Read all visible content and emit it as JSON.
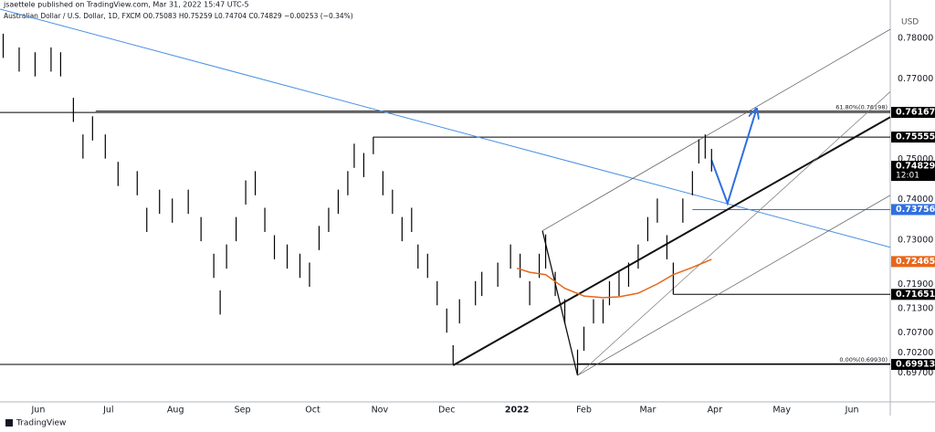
{
  "header": {
    "publisher": "jsaettele published on TradingView.com, Mar 31, 2022 15:47 UTC-5",
    "legend": "Australian Dollar / U.S. Dollar, 1D, FXCM  O0.75083 H0.75259 L0.74704 C0.74829 −0.00253 (−0.34%)"
  },
  "footer": "TradingView",
  "chart_data": {
    "type": "ohlc",
    "currency": "USD",
    "color": "#000000",
    "xlim": [
      0,
      279
    ],
    "ylim": [
      0.6887,
      0.7873
    ],
    "xticks": [
      {
        "value": 12,
        "label": "Jun"
      },
      {
        "value": 34,
        "label": "Jul"
      },
      {
        "value": 55,
        "label": "Aug"
      },
      {
        "value": 76,
        "label": "Sep"
      },
      {
        "value": 98,
        "label": "Oct"
      },
      {
        "value": 119,
        "label": "Nov"
      },
      {
        "value": 140,
        "label": "Dec"
      },
      {
        "value": 162,
        "label": "2022"
      },
      {
        "value": 183,
        "label": "Feb"
      },
      {
        "value": 203,
        "label": "Mar"
      },
      {
        "value": 224,
        "label": "Apr"
      },
      {
        "value": 245,
        "label": "May"
      },
      {
        "value": 267,
        "label": "Jun"
      }
    ],
    "yticks": [
      {
        "value": 0.78,
        "label": "0.78000"
      },
      {
        "value": 0.77,
        "label": "0.77000"
      },
      {
        "value": 0.75,
        "label": "0.75000"
      },
      {
        "value": 0.74,
        "label": "0.74000"
      },
      {
        "value": 0.73,
        "label": "0.73000"
      },
      {
        "value": 0.719,
        "label": "0.71900"
      },
      {
        "value": 0.713,
        "label": "0.71300"
      },
      {
        "value": 0.707,
        "label": "0.70700"
      },
      {
        "value": 0.702,
        "label": "0.70200"
      },
      {
        "value": 0.697,
        "label": "0.69700"
      }
    ],
    "bars": {
      "x": [
        1,
        6,
        11,
        16,
        19,
        23,
        26,
        29,
        33,
        37,
        43,
        46,
        50,
        54,
        59,
        63,
        67,
        69,
        71,
        74,
        77,
        80,
        83,
        86,
        90,
        94,
        97,
        100,
        103,
        106,
        109,
        111,
        114,
        117,
        120,
        123,
        126,
        129,
        131,
        134,
        137,
        140,
        142,
        144,
        149,
        151,
        156,
        160,
        163,
        166,
        169,
        171,
        174,
        177,
        181,
        183,
        186,
        189,
        191,
        194,
        197,
        200,
        203,
        206,
        209,
        211,
        214,
        217,
        219,
        221,
        223
      ],
      "high": [
        0.7812,
        0.7778,
        0.7766,
        0.7778,
        0.7766,
        0.7653,
        0.7562,
        0.7607,
        0.7562,
        0.7494,
        0.7471,
        0.738,
        0.7425,
        0.7403,
        0.7425,
        0.7357,
        0.7266,
        0.7175,
        0.7289,
        0.7357,
        0.7448,
        0.7471,
        0.738,
        0.7312,
        0.7289,
        0.7266,
        0.7244,
        0.7335,
        0.738,
        0.7425,
        0.7471,
        0.7539,
        0.7516,
        0.7556,
        0.7471,
        0.7425,
        0.7357,
        0.738,
        0.7289,
        0.7266,
        0.7198,
        0.713,
        0.7039,
        0.7153,
        0.7198,
        0.7221,
        0.7244,
        0.7289,
        0.7266,
        0.7198,
        0.7266,
        0.7314,
        0.7221,
        0.7153,
        0.7028,
        0.7085,
        0.7153,
        0.7153,
        0.7198,
        0.7221,
        0.7244,
        0.7289,
        0.7357,
        0.7403,
        0.7312,
        0.7244,
        0.7403,
        0.7471,
        0.755,
        0.7562,
        0.7526
      ],
      "low": [
        0.7752,
        0.7718,
        0.7706,
        0.7718,
        0.7706,
        0.7593,
        0.7502,
        0.7547,
        0.7502,
        0.7434,
        0.7411,
        0.732,
        0.7365,
        0.7343,
        0.7365,
        0.7297,
        0.7206,
        0.7115,
        0.7229,
        0.7297,
        0.7388,
        0.7411,
        0.732,
        0.7252,
        0.7229,
        0.7206,
        0.7184,
        0.7275,
        0.732,
        0.7365,
        0.7411,
        0.7479,
        0.7456,
        0.7513,
        0.7411,
        0.7365,
        0.7297,
        0.732,
        0.7229,
        0.7206,
        0.7138,
        0.707,
        0.6991,
        0.7093,
        0.7138,
        0.7161,
        0.7184,
        0.7229,
        0.7206,
        0.7138,
        0.7206,
        0.7229,
        0.7161,
        0.7093,
        0.6967,
        0.7025,
        0.7093,
        0.7093,
        0.7138,
        0.7161,
        0.7184,
        0.7229,
        0.7297,
        0.7343,
        0.7252,
        0.7165,
        0.7343,
        0.7411,
        0.749,
        0.7502,
        0.747
      ]
    },
    "series": [
      {
        "name": "MA",
        "color": "#e8661a",
        "x": [
          162,
          166,
          171,
          177,
          183,
          189,
          194,
          200,
          206,
          211,
          217,
          223
        ],
        "values": [
          0.723,
          0.722,
          0.7214,
          0.718,
          0.7161,
          0.7157,
          0.7159,
          0.7168,
          0.7191,
          0.7214,
          0.7232,
          0.7252
        ]
      }
    ],
    "trendlines": [
      {
        "color": "#4a90e2",
        "width": 1,
        "x": [
          0,
          279
        ],
        "values": [
          0.7873,
          0.7282
        ]
      },
      {
        "color": "#111111",
        "width": 2,
        "x": [
          142,
          279
        ],
        "values": [
          0.6989,
          0.7605
        ]
      },
      {
        "color": "#111111",
        "width": 1.3,
        "x": [
          170,
          181
        ],
        "values": [
          0.7323,
          0.6964
        ]
      },
      {
        "color": "#555555",
        "width": 0.7,
        "x": [
          170,
          279
        ],
        "values": [
          0.7323,
          0.7823
        ]
      },
      {
        "color": "#777777",
        "width": 0.7,
        "x": [
          181,
          279
        ],
        "values": [
          0.6964,
          0.7668
        ]
      },
      {
        "color": "#555555",
        "width": 0.7,
        "x": [
          181,
          279
        ],
        "values": [
          0.6964,
          0.7411
        ]
      },
      {
        "color": "#2f6fe0",
        "width": 2,
        "arrow": true,
        "x": [
          223,
          228,
          237
        ],
        "values": [
          0.7498,
          0.7391,
          0.7623
        ]
      }
    ],
    "levels": [
      {
        "value": 0.76167,
        "from": 0,
        "line": "#000000",
        "tag": "#000000"
      },
      {
        "value": 0.75555,
        "from": 117,
        "line": "#000000",
        "tag": "#000000"
      },
      {
        "value": 0.74829,
        "tag": "#000000",
        "time_label": "12:01"
      },
      {
        "value": 0.73756,
        "from": 217,
        "line": "#2f6fe0",
        "tag": "#2f6fe0"
      },
      {
        "value": 0.72465,
        "tag": "#e8661a"
      },
      {
        "value": 0.71651,
        "from": 211,
        "line": "#000000",
        "tag": "#000000"
      },
      {
        "value": 0.69913,
        "from": 0,
        "line": "#000000",
        "tag": "#000000"
      }
    ],
    "fib": [
      {
        "value": 0.76198,
        "from": 30,
        "label": "61.80%(0.76198)"
      },
      {
        "value": 0.6993,
        "from": 181,
        "label": "0.00%(0.69930)"
      }
    ]
  }
}
